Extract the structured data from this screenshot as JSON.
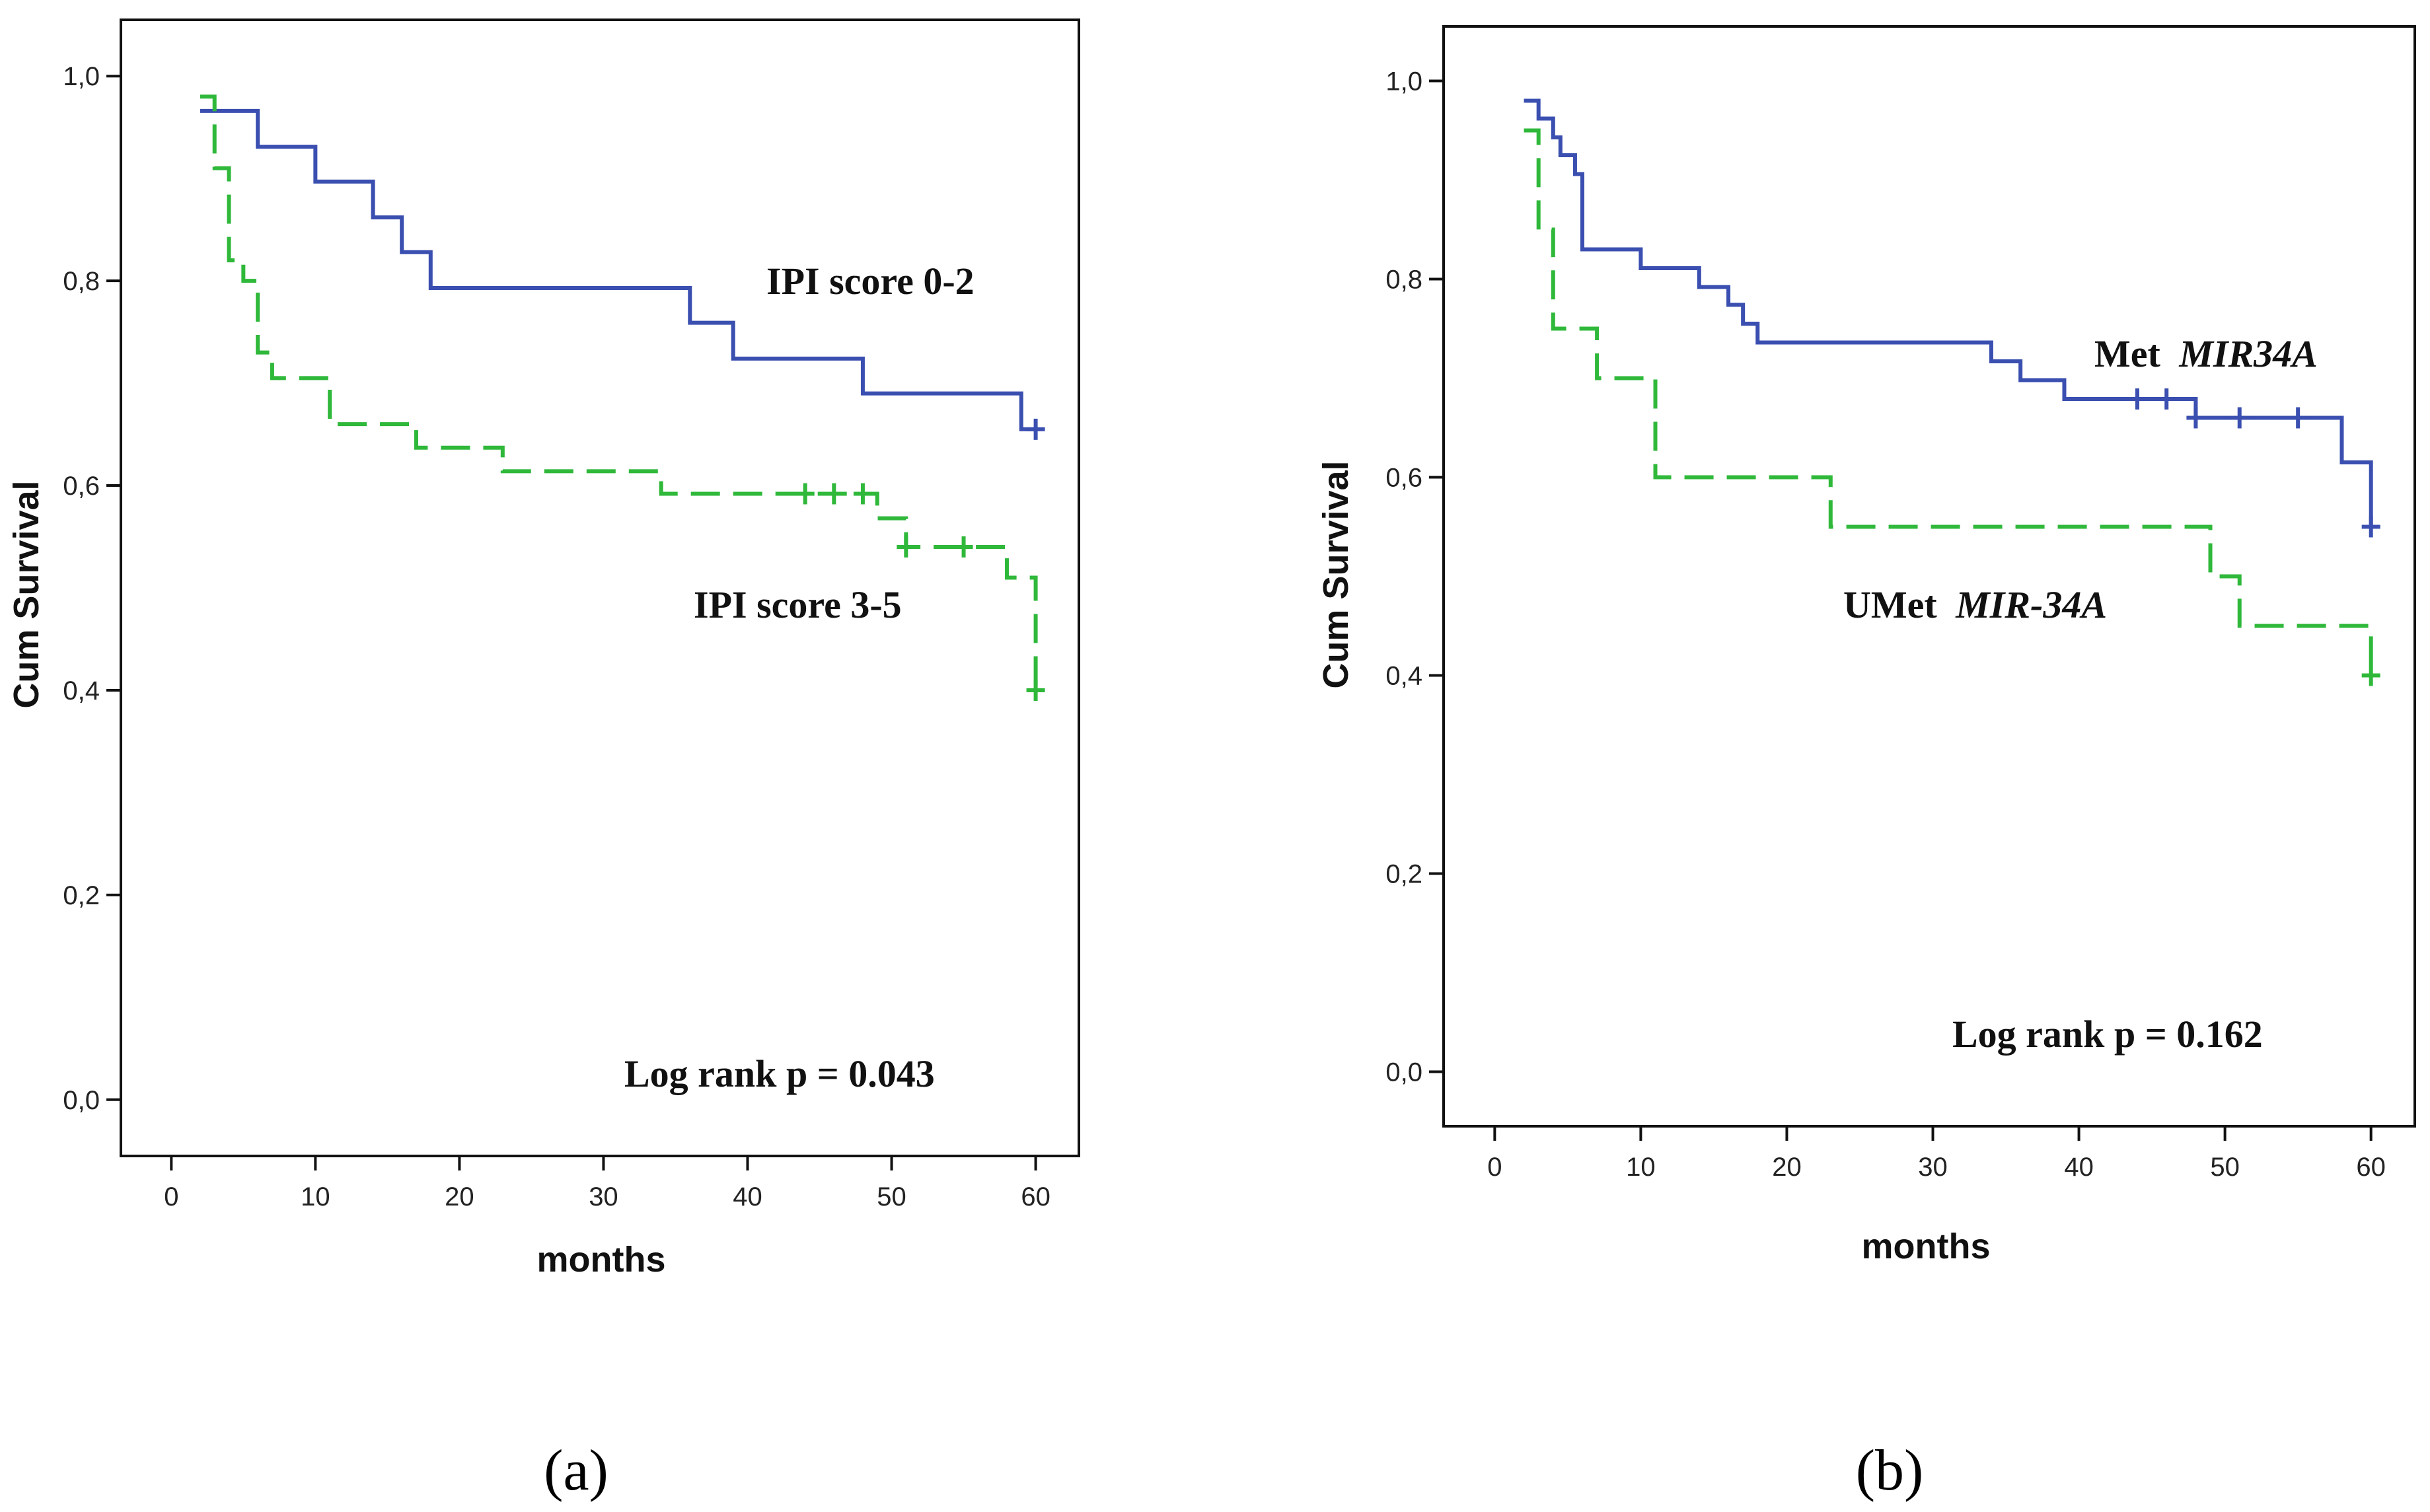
{
  "figure_label_a": "(a)",
  "figure_label_b": "(b)",
  "chart_data": [
    {
      "type": "line",
      "subtype": "kaplan-meier",
      "panel": "a",
      "xlabel": "months",
      "ylabel": "Cum Survival",
      "xlim": [
        -3.5,
        63
      ],
      "ylim": [
        -0.055,
        1.055
      ],
      "xticks": [
        0,
        10,
        20,
        30,
        40,
        50,
        60
      ],
      "xtick_labels": [
        "0",
        "10",
        "20",
        "30",
        "40",
        "50",
        "60"
      ],
      "yticks": [
        0.0,
        0.2,
        0.4,
        0.6,
        0.8,
        1.0
      ],
      "ytick_labels": [
        "0,0",
        "0,2",
        "0,4",
        "0,6",
        "0,8",
        "1,0"
      ],
      "annotation": "Log rank p = 0.043",
      "series": [
        {
          "name": "IPI score 0-2",
          "label": "IPI score 0-2",
          "color": "#3a4fb0",
          "style": "solid",
          "steps": [
            [
              2,
              0.966
            ],
            [
              6,
              0.931
            ],
            [
              10,
              0.897
            ],
            [
              14,
              0.862
            ],
            [
              16,
              0.828
            ],
            [
              18,
              0.793
            ],
            [
              36,
              0.759
            ],
            [
              39,
              0.724
            ],
            [
              48,
              0.69
            ],
            [
              59,
              0.655
            ],
            [
              60,
              0.655
            ]
          ],
          "censored": [
            [
              60,
              0.655
            ]
          ]
        },
        {
          "name": "IPI score 3-5",
          "label": "IPI score 3-5",
          "color": "#2fb83a",
          "style": "dashed",
          "steps": [
            [
              2,
              0.98
            ],
            [
              3,
              0.91
            ],
            [
              4,
              0.82
            ],
            [
              5,
              0.8
            ],
            [
              6,
              0.73
            ],
            [
              7,
              0.705
            ],
            [
              11,
              0.66
            ],
            [
              17,
              0.637
            ],
            [
              23,
              0.614
            ],
            [
              34,
              0.592
            ],
            [
              49,
              0.568
            ],
            [
              51,
              0.54
            ],
            [
              58,
              0.51
            ],
            [
              60,
              0.4
            ]
          ],
          "censored": [
            [
              44,
              0.592
            ],
            [
              46,
              0.592
            ],
            [
              48,
              0.592
            ],
            [
              51,
              0.54
            ],
            [
              55,
              0.54
            ],
            [
              60,
              0.4
            ]
          ]
        }
      ]
    },
    {
      "type": "line",
      "subtype": "kaplan-meier",
      "panel": "b",
      "xlabel": "months",
      "ylabel": "Cum Survival",
      "xlim": [
        -3.5,
        63
      ],
      "ylim": [
        -0.055,
        1.055
      ],
      "xticks": [
        0,
        10,
        20,
        30,
        40,
        50,
        60
      ],
      "xtick_labels": [
        "0",
        "10",
        "20",
        "30",
        "40",
        "50",
        "60"
      ],
      "yticks": [
        0.0,
        0.2,
        0.4,
        0.6,
        0.8,
        1.0
      ],
      "ytick_labels": [
        "0,0",
        "0,2",
        "0,4",
        "0,6",
        "0,8",
        "1,0"
      ],
      "annotation": "Log rank p = 0.162",
      "series": [
        {
          "name": "Met MIR34A",
          "label_plain": "Met",
          "label_italic": "MIR34A",
          "color": "#3a4fb0",
          "style": "solid",
          "steps": [
            [
              2,
              0.98
            ],
            [
              3,
              0.962
            ],
            [
              4,
              0.943
            ],
            [
              4.5,
              0.925
            ],
            [
              5.5,
              0.906
            ],
            [
              6,
              0.83
            ],
            [
              10,
              0.811
            ],
            [
              14,
              0.792
            ],
            [
              16,
              0.774
            ],
            [
              17,
              0.755
            ],
            [
              18,
              0.736
            ],
            [
              34,
              0.717
            ],
            [
              36,
              0.698
            ],
            [
              39,
              0.679
            ],
            [
              48,
              0.66
            ],
            [
              58,
              0.615
            ],
            [
              60,
              0.55
            ]
          ],
          "censored": [
            [
              44,
              0.679
            ],
            [
              46,
              0.679
            ],
            [
              48,
              0.66
            ],
            [
              51,
              0.66
            ],
            [
              55,
              0.66
            ],
            [
              60,
              0.55
            ]
          ]
        },
        {
          "name": "UMet MIR-34A",
          "label_plain": "UMet",
          "label_italic": "MIR-34A",
          "color": "#2fb83a",
          "style": "dashed",
          "steps": [
            [
              2,
              0.95
            ],
            [
              3,
              0.85
            ],
            [
              4,
              0.75
            ],
            [
              7,
              0.7
            ],
            [
              11,
              0.6
            ],
            [
              23,
              0.55
            ],
            [
              49,
              0.5
            ],
            [
              51,
              0.45
            ],
            [
              60,
              0.4
            ]
          ],
          "censored": [
            [
              60,
              0.4
            ]
          ]
        }
      ]
    }
  ]
}
